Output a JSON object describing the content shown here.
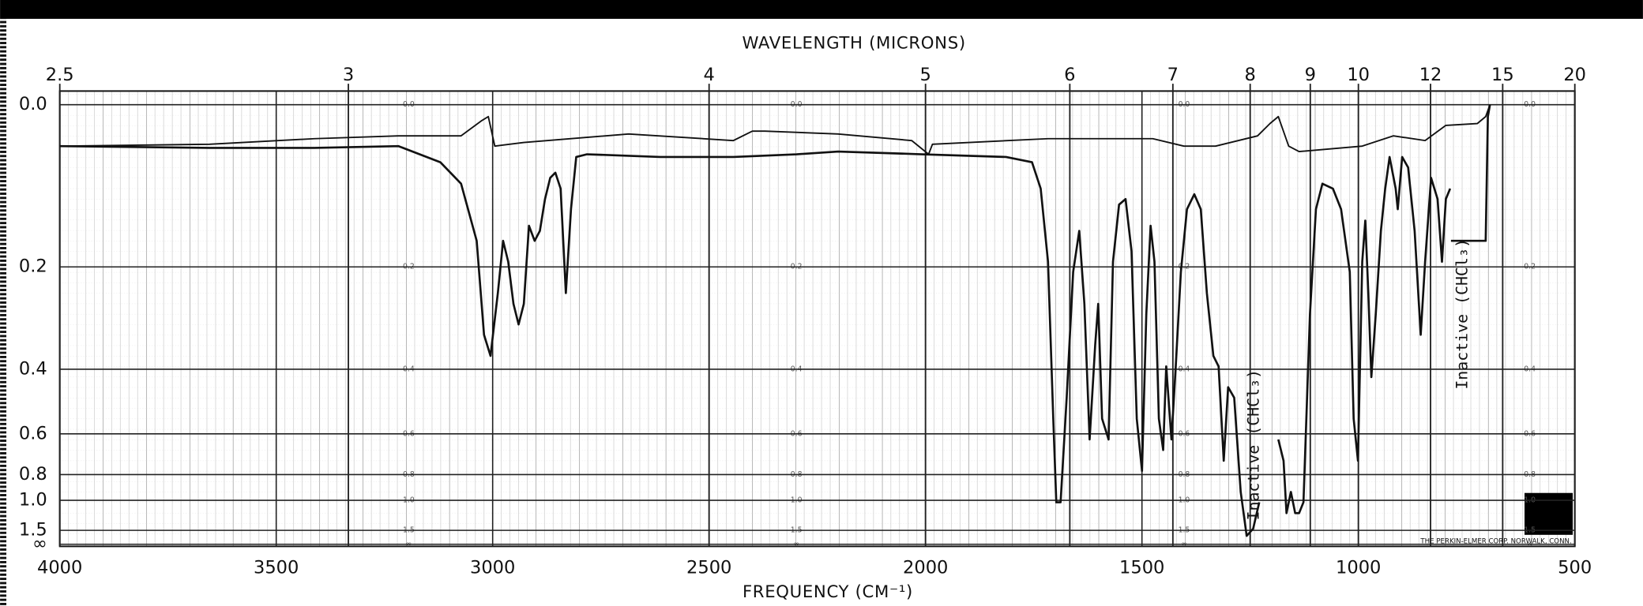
{
  "chart_data": {
    "type": "line",
    "title": "WAVELENGTH (MICRONS)",
    "xlabel": "FREQUENCY (CM⁻¹)",
    "footer": "THE PERKIN-ELMER CORP. NORWALK, CONN.",
    "xlim": [
      4000,
      500
    ],
    "xticks": [
      4000,
      3500,
      3000,
      2500,
      2000,
      1500,
      1000,
      500
    ],
    "x2_scale": "microns",
    "x2ticks": [
      2.5,
      3,
      4,
      5,
      6,
      7,
      8,
      9,
      10,
      12,
      15,
      20
    ],
    "y_scale": "absorbance",
    "ylim": [
      0,
      1e+308
    ],
    "yticks": [
      {
        "value": 0,
        "label": "0.0"
      },
      0.2,
      0.4,
      0.6,
      0.8,
      {
        "value": 1,
        "label": "1.0"
      },
      1.5,
      {
        "value": 1e+308,
        "label": "∞"
      }
    ],
    "grid": true,
    "annotations": [
      {
        "text": "Inactive (CHCl₃)"
      },
      {
        "text": "Inactive (CHCl₃)"
      }
    ],
    "series": [
      {
        "color": "#111",
        "x": [
          4000,
          3654,
          3412,
          3218,
          3121,
          3073,
          3037,
          3020,
          3005,
          2988,
          2976,
          2964,
          2952,
          2940,
          2928,
          2916,
          2903,
          2891,
          2879,
          2867,
          2855,
          2843,
          2831,
          2819,
          2807,
          2782,
          2613,
          2444,
          2298,
          2202,
          2008,
          1814,
          1754,
          1734,
          1717,
          1705,
          1698,
          1688,
          1674,
          1659,
          1645,
          1633,
          1621,
          1608,
          1601,
          1592,
          1577,
          1567,
          1553,
          1538,
          1524,
          1512,
          1500,
          1490,
          1480,
          1471,
          1461,
          1451,
          1444,
          1432,
          1422,
          1410,
          1396,
          1379,
          1364,
          1350,
          1335,
          1323,
          1311,
          1301,
          1287,
          1272,
          1258,
          1243,
          1229,
          null,
          1185,
          1173,
          1166,
          1156,
          1146,
          1137,
          1127,
          1112,
          1098,
          1083,
          1059,
          1040,
          1020,
          1011,
          1001,
          991,
          984,
          977,
          970,
          960,
          948,
          938,
          928,
          914,
          909,
          899,
          885,
          870,
          856,
          846,
          832,
          817,
          807,
          798,
          788,
          null,
          786,
          706,
          701,
          696
        ],
        "values": [
          0.043,
          0.045,
          0.045,
          0.043,
          0.061,
          0.086,
          0.161,
          0.322,
          0.368,
          0.243,
          0.161,
          0.192,
          0.262,
          0.301,
          0.262,
          0.14,
          0.161,
          0.147,
          0.105,
          0.079,
          0.073,
          0.092,
          0.243,
          0.118,
          0.055,
          0.052,
          0.055,
          0.055,
          0.052,
          0.049,
          0.052,
          0.055,
          0.061,
          0.092,
          0.192,
          0.544,
          1.02,
          1.02,
          0.477,
          0.208,
          0.147,
          0.262,
          0.623,
          0.344,
          0.262,
          0.544,
          0.623,
          0.192,
          0.112,
          0.105,
          0.176,
          0.544,
          0.778,
          0.281,
          0.14,
          0.192,
          0.544,
          0.669,
          0.393,
          0.623,
          0.393,
          0.208,
          0.118,
          0.099,
          0.118,
          0.243,
          0.368,
          0.393,
          0.721,
          0.447,
          0.477,
          0.924,
          1.72,
          1.45,
          1.02,
          null,
          0.623,
          0.721,
          1.15,
          0.924,
          1.15,
          1.15,
          1.02,
          0.281,
          0.118,
          0.086,
          0.092,
          0.118,
          0.208,
          0.544,
          0.721,
          0.192,
          0.133,
          0.243,
          0.42,
          0.281,
          0.147,
          0.092,
          0.055,
          0.092,
          0.118,
          0.055,
          0.067,
          0.147,
          0.322,
          0.192,
          0.079,
          0.105,
          0.192,
          0.105,
          0.092,
          null,
          0.161,
          0.161,
          0.012,
          0.0
        ]
      },
      {
        "color": "#111",
        "x": [
          4000,
          3654,
          3412,
          3218,
          3073,
          3025,
          3010,
          2995,
          2928,
          2686,
          2444,
          2400,
          2371,
          2202,
          2032,
          1993,
          1984,
          1717,
          1475,
          1403,
          1330,
          1233,
          1204,
          1185,
          1161,
          1137,
          991,
          919,
          846,
          798,
          725,
          706,
          696
        ],
        "values": [
          0.043,
          0.041,
          0.035,
          0.032,
          0.032,
          0.016,
          0.012,
          0.043,
          0.039,
          0.03,
          0.037,
          0.027,
          0.027,
          0.03,
          0.037,
          0.052,
          0.041,
          0.035,
          0.035,
          0.043,
          0.043,
          0.032,
          0.019,
          0.012,
          0.043,
          0.049,
          0.043,
          0.032,
          0.037,
          0.021,
          0.019,
          0.012,
          0.0
        ]
      }
    ]
  }
}
